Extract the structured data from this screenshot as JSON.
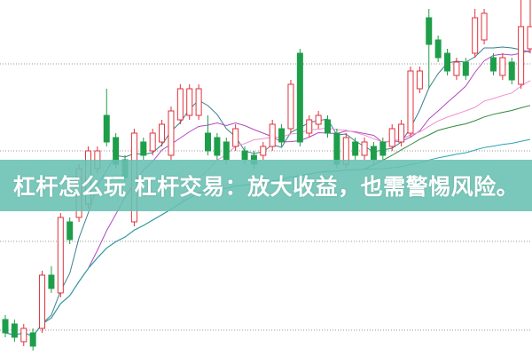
{
  "banner": {
    "title": "杠杆怎么玩 杠杆交易：放大收益，也需警惕风险。"
  },
  "colors": {
    "up": "#e0323c",
    "down": "#1f9e4a",
    "banner": "#68c0b2",
    "ma": [
      "#3a7f8f",
      "#b04ac0",
      "#f08fd0",
      "#2f8a3a",
      "#2aa3b3"
    ]
  },
  "chart_data": {
    "type": "candlestick",
    "grid": "dotted horizontal",
    "ylim": [
      0,
      40
    ],
    "moving_averages": [
      5,
      10,
      20,
      40,
      60
    ],
    "candles": [
      [
        4.0,
        4.5,
        2.0,
        2.5
      ],
      [
        3.5,
        4.0,
        1.5,
        2.0
      ],
      [
        1.5,
        3.5,
        1.0,
        3.0
      ],
      [
        2.5,
        3.0,
        0.5,
        1.0
      ],
      [
        3.0,
        9.5,
        2.5,
        9.0
      ],
      [
        9.0,
        10,
        7,
        7.5
      ],
      [
        7.0,
        16,
        6.5,
        15.5
      ],
      [
        15,
        15.5,
        12.5,
        13
      ],
      [
        15.5,
        21.5,
        15,
        21
      ],
      [
        17,
        23.5,
        16.5,
        23
      ],
      [
        21,
        23.5,
        20.5,
        23
      ],
      [
        27,
        30,
        23.5,
        24
      ],
      [
        24.5,
        25,
        21,
        21.5
      ],
      [
        22,
        22.5,
        19.5,
        20
      ],
      [
        15,
        25.5,
        14.5,
        25
      ],
      [
        24,
        24.5,
        22,
        22.5
      ],
      [
        23,
        25.5,
        22.5,
        25
      ],
      [
        24,
        26.5,
        23.5,
        26
      ],
      [
        22.5,
        28,
        22,
        27.5
      ],
      [
        26.5,
        30.5,
        26,
        30
      ],
      [
        27,
        30.5,
        26.5,
        30
      ],
      [
        27,
        30.5,
        26.5,
        30
      ],
      [
        25,
        27,
        22.5,
        23
      ],
      [
        24.5,
        25,
        22,
        22.5
      ],
      [
        24,
        24.5,
        21.5,
        22
      ],
      [
        23.5,
        26,
        23,
        25.5
      ],
      [
        23,
        23.5,
        21.5,
        22
      ],
      [
        22.5,
        23,
        21,
        21.5
      ],
      [
        22.5,
        24,
        22,
        23.5
      ],
      [
        23.5,
        26.5,
        23,
        26
      ],
      [
        25.5,
        26,
        23.5,
        24
      ],
      [
        25.5,
        31,
        25,
        30.5
      ],
      [
        34,
        34.5,
        23.5,
        24
      ],
      [
        25,
        27,
        24.5,
        26.5
      ],
      [
        26,
        27.5,
        25.5,
        27
      ],
      [
        26.5,
        27,
        24.5,
        25
      ],
      [
        25,
        25.5,
        21,
        21.5
      ],
      [
        21.5,
        25,
        21,
        24.5
      ],
      [
        24,
        24.5,
        22,
        22.5
      ],
      [
        22.5,
        24.5,
        22,
        24
      ],
      [
        23.5,
        24,
        21.5,
        22
      ],
      [
        24,
        24.5,
        22,
        22.5
      ],
      [
        23.5,
        26,
        23,
        25.5
      ],
      [
        24,
        26.5,
        23.5,
        26
      ],
      [
        25,
        32.5,
        24.5,
        32
      ],
      [
        30,
        32.5,
        29.5,
        32
      ],
      [
        38,
        39,
        30,
        35
      ],
      [
        35.5,
        36,
        33,
        33.5
      ],
      [
        34,
        34.5,
        31.5,
        32
      ],
      [
        31.5,
        33.5,
        31,
        33
      ],
      [
        33,
        33.5,
        31,
        31.5
      ],
      [
        34,
        39,
        33.5,
        38
      ],
      [
        35.5,
        39,
        35,
        38.5
      ],
      [
        33.5,
        34,
        31.5,
        32
      ],
      [
        31.5,
        34,
        31,
        33.5
      ],
      [
        33,
        33.5,
        30.5,
        31
      ],
      [
        30.5,
        40,
        30,
        37
      ],
      [
        34.5,
        40,
        34,
        37
      ]
    ]
  }
}
